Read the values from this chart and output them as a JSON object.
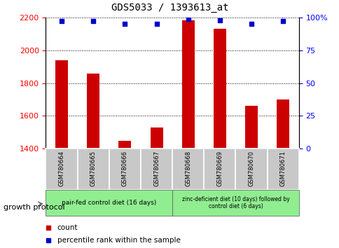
{
  "title": "GDS5033 / 1393613_at",
  "samples": [
    "GSM780664",
    "GSM780665",
    "GSM780666",
    "GSM780667",
    "GSM780668",
    "GSM780669",
    "GSM780670",
    "GSM780671"
  ],
  "count_values": [
    1940,
    1860,
    1450,
    1530,
    2180,
    2130,
    1660,
    1700
  ],
  "percentile_values": [
    97,
    97,
    95,
    95,
    99,
    98,
    95,
    97
  ],
  "ylim_left": [
    1400,
    2200
  ],
  "ylim_right": [
    0,
    100
  ],
  "yticks_left": [
    1400,
    1600,
    1800,
    2000,
    2200
  ],
  "yticks_right": [
    0,
    25,
    50,
    75,
    100
  ],
  "bar_color": "#CC0000",
  "dot_color": "#0000CC",
  "bar_bottom": 1400,
  "group1_label": "pair-fed control diet (16 days)",
  "group2_label": "zinc-deficient diet (10 days) followed by\ncontrol diet (6 days)",
  "group_color": "#90EE90",
  "sample_bg_color": "#C8C8C8",
  "xlabel_protocol": "growth protocol",
  "legend_count": "count",
  "legend_percentile": "percentile rank within the sample",
  "bar_width": 0.4
}
